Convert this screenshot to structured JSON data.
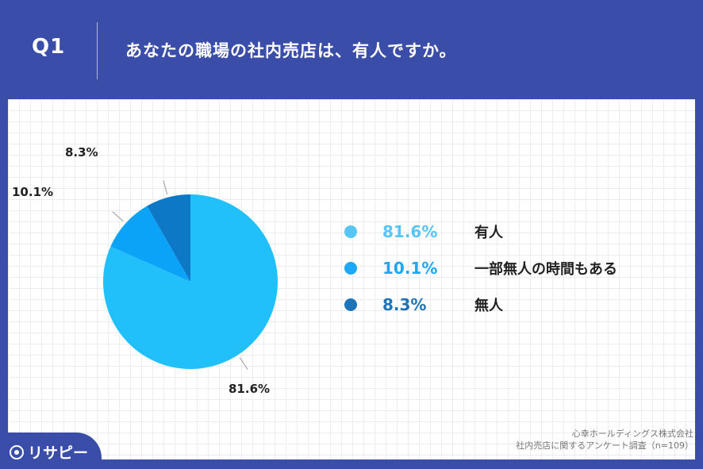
{
  "header": {
    "question_label": "Q1",
    "title": "あなたの職場の社内売店は、有人ですか。"
  },
  "chart_data": {
    "type": "pie",
    "slices": [
      {
        "label": "有人",
        "value": 81.6,
        "value_label": "81.6%",
        "color": "#22c0fb"
      },
      {
        "label": "一部無人の時間もある",
        "value": 10.1,
        "value_label": "10.1%",
        "color": "#0aa3f8"
      },
      {
        "label": "無人",
        "value": 8.3,
        "value_label": "8.3%",
        "color": "#0d79c6"
      }
    ],
    "legend_position": "right",
    "legend_dot_colors": [
      "#56c5f7",
      "#1ea7f4",
      "#1d74b9"
    ],
    "legend_value_colors": [
      "#56c5f7",
      "#1ea7f4",
      "#1d74b9"
    ]
  },
  "source": {
    "line1": "心幸ホールディングス株式会社",
    "line2": "社内売店に関するアンケート調査（n=109）"
  },
  "logo": {
    "text": "リサピー"
  }
}
